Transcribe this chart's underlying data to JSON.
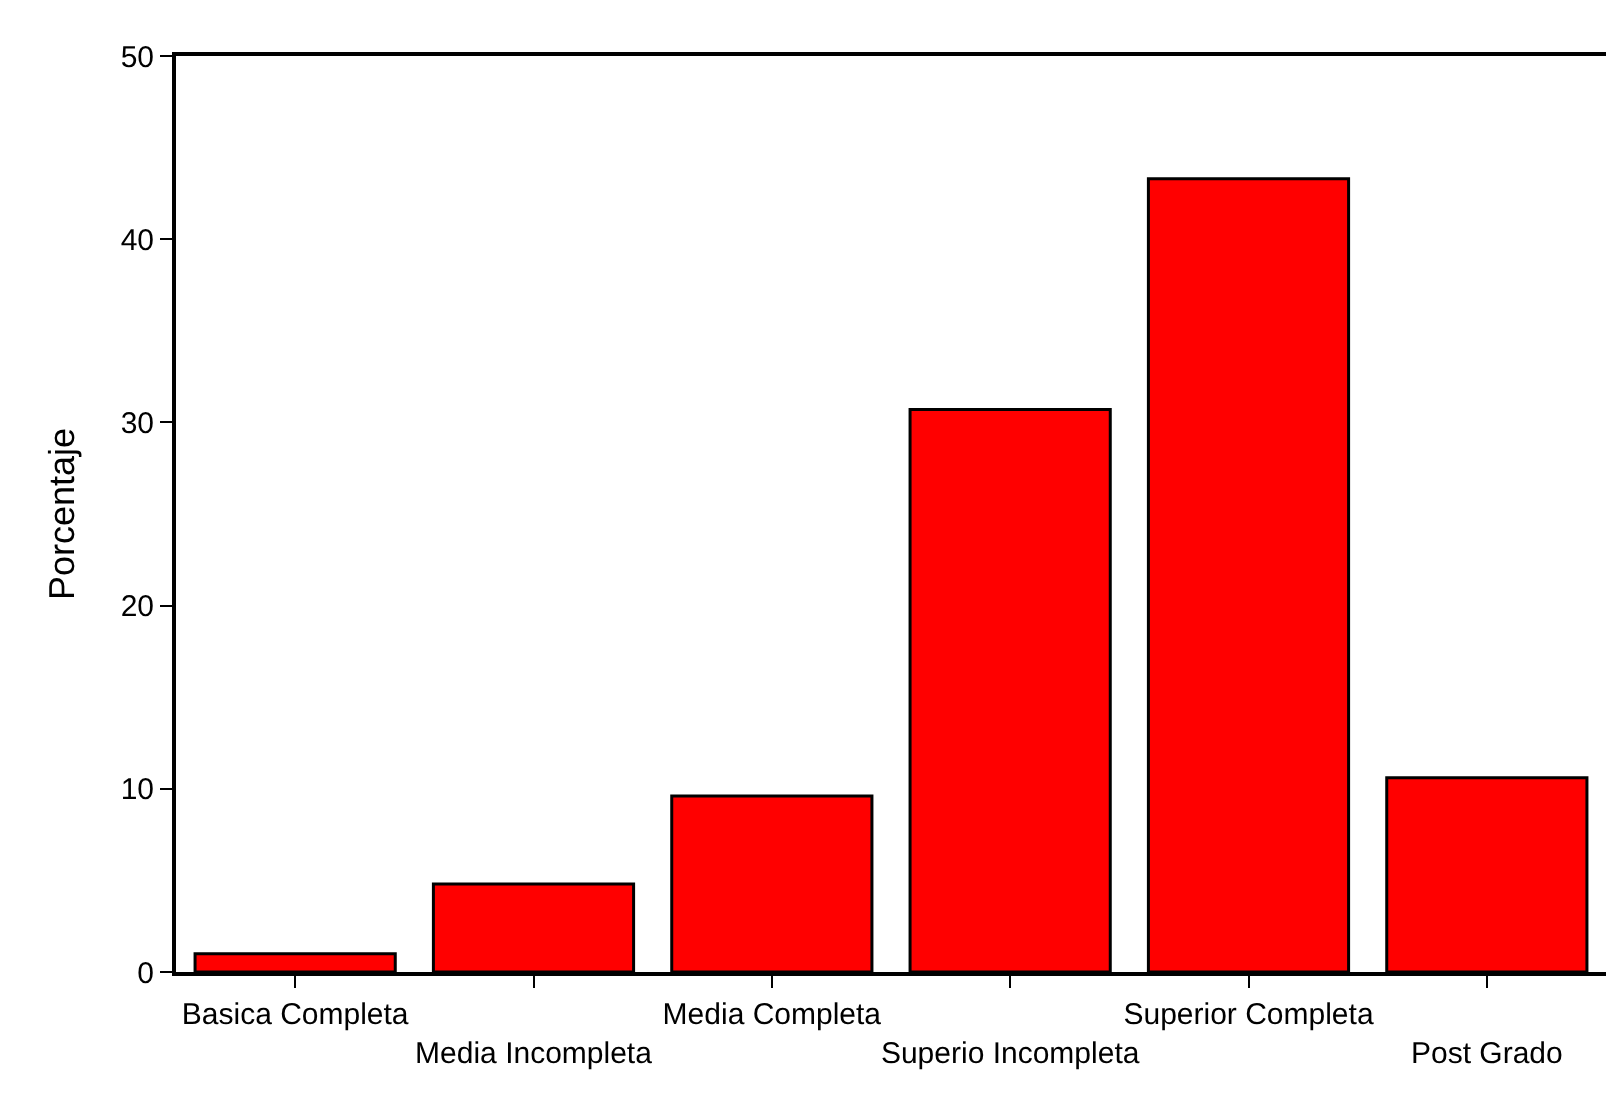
{
  "chart_data": {
    "type": "bar",
    "ylabel": "Porcentaje",
    "categories": [
      "Basica Completa",
      "Media Incompleta",
      "Media Completa",
      "Superio Incompleta",
      "Superior Completa",
      "Post Grado"
    ],
    "values": [
      1.0,
      4.8,
      9.6,
      30.7,
      43.3,
      10.6
    ],
    "color": "#ff0000",
    "ylim": [
      0,
      50
    ],
    "yticks": [
      0,
      10,
      20,
      30,
      40,
      50
    ],
    "legend": false
  }
}
